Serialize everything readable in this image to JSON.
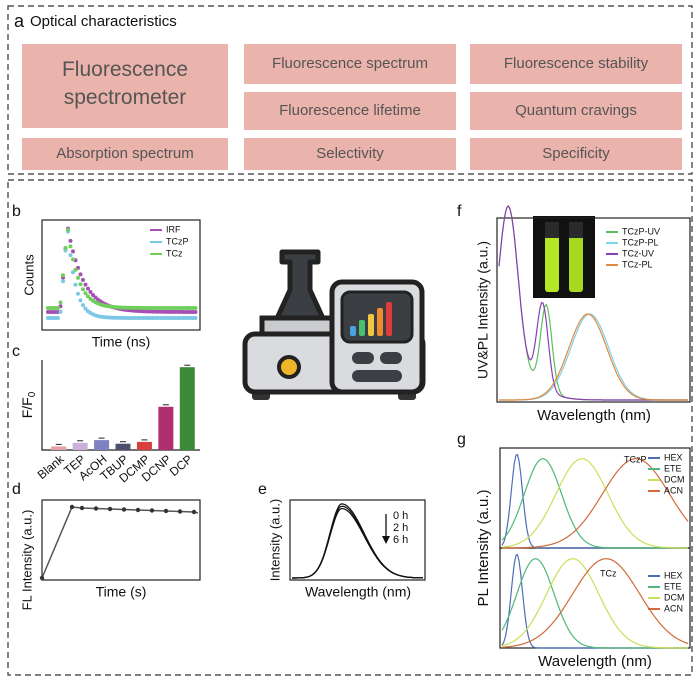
{
  "panel_a": {
    "label": "a",
    "title": "Optical characteristics",
    "items": [
      "Fluorescence spectrometer",
      "Fluorescence spectrum",
      "Fluorescence stability",
      "Fluorescence lifetime",
      "Quantum cravings",
      "Absorption spectrum",
      "Selectivity",
      "Specificity"
    ]
  },
  "panel_b": {
    "label": "b",
    "y_label": "Counts",
    "x_label": "Time (ns)",
    "legend": [
      "IRF",
      "TCzP",
      "TCz"
    ]
  },
  "panel_c": {
    "label": "c",
    "y_label": "F/F",
    "y_label_sub": "0",
    "chart_data": {
      "type": "bar",
      "categories": [
        "Blank",
        "TEP",
        "AcOH",
        "TBUP",
        "DCMP",
        "DCNP",
        "DCP"
      ],
      "values": [
        0.04,
        0.08,
        0.11,
        0.07,
        0.09,
        0.48,
        0.92
      ],
      "colors": [
        "#e8a0a8",
        "#c9b2d9",
        "#7f82c2",
        "#4f5070",
        "#d8403c",
        "#b02f6e",
        "#3a8a3a"
      ],
      "ylim": [
        0,
        1
      ]
    }
  },
  "panel_d": {
    "label": "d",
    "y_label": "FL Intensity (a.u.)",
    "x_label": "Time (s)"
  },
  "panel_e": {
    "label": "e",
    "y_label": "Intensity (a.u.)",
    "x_label": "Wavelength (nm)",
    "legend": [
      "0 h",
      "2 h",
      "6 h"
    ]
  },
  "panel_f": {
    "label": "f",
    "y_label": "UV&PL Intensity (a.u.)",
    "x_label": "Wavelength (nm)",
    "legend": [
      "TCzP-UV",
      "TCzP-PL",
      "TCz-UV",
      "TCz-PL"
    ]
  },
  "panel_g": {
    "label": "g",
    "y_label": "PL Intensity (a.u.)",
    "x_label": "Wavelength (nm)",
    "legend": [
      "HEX",
      "ETE",
      "DCM",
      "ACN"
    ],
    "titles": [
      "TCzP",
      "TCz"
    ]
  }
}
